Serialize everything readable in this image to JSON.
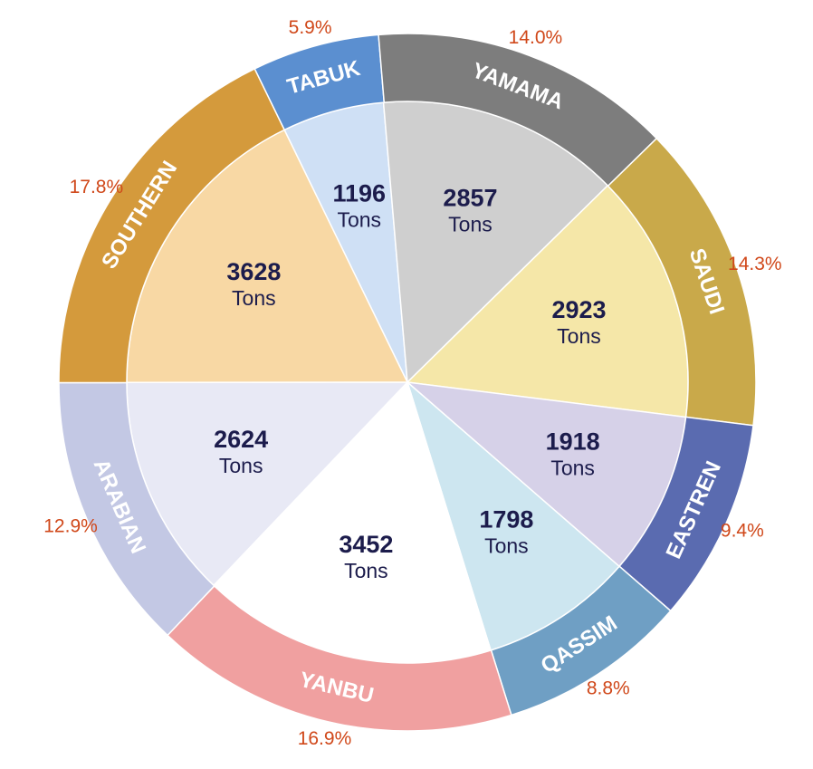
{
  "chart_data": {
    "type": "pie",
    "categories": [
      "TABUK",
      "YAMAMA",
      "SAUDI",
      "EASTREN",
      "QASSIM",
      "YANBU",
      "ARABIAN",
      "SOUTHERN"
    ],
    "values": [
      1196,
      2857,
      2923,
      1918,
      1798,
      3452,
      2624,
      3628
    ],
    "unit": "Tons",
    "percentages": [
      5.9,
      14.0,
      14.3,
      9.4,
      8.8,
      16.9,
      12.9,
      17.8
    ],
    "percentage_labels": [
      "5.9%",
      "14.0%",
      "14.3%",
      "9.4%",
      "8.8%",
      "16.9%",
      "12.9%",
      "17.8%"
    ],
    "ring_colors": [
      "#5b8fd0",
      "#7d7d7d",
      "#c9a94a",
      "#5a6bb0",
      "#6f9fc4",
      "#f0a0a0",
      "#c3c8e4",
      "#d49a3c"
    ],
    "slice_colors": [
      "#cfe0f5",
      "#cfcfcf",
      "#f5e7a8",
      "#d6d1e8",
      "#cde6f0",
      "#ffffff",
      "#e8e9f5",
      "#f8d8a4"
    ]
  }
}
